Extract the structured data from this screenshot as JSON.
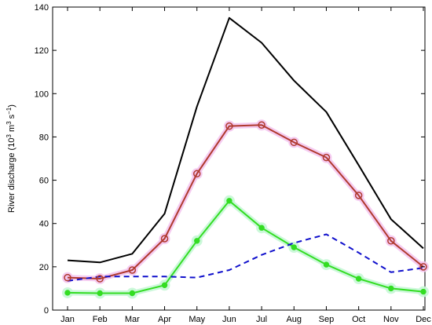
{
  "chart_data": {
    "type": "line",
    "title": "",
    "xlabel": "",
    "ylabel": "River discharge (10^3 m^3 s^-1)",
    "ylabel_parts": {
      "main": "River discharge (10",
      "exp1": "3",
      "mid": " m",
      "exp2": "3",
      "mid2": " s",
      "exp3": "−1",
      "end": ")"
    },
    "categories": [
      "Jan",
      "Feb",
      "Mar",
      "Apr",
      "May",
      "Jun",
      "Jul",
      "Aug",
      "Sep",
      "Oct",
      "Nov",
      "Dec"
    ],
    "ylim": [
      0,
      140
    ],
    "yticks": [
      0,
      20,
      40,
      60,
      80,
      100,
      120,
      140
    ],
    "grid": false,
    "legend": "none",
    "series": [
      {
        "values": [
          23,
          22,
          26,
          44.5,
          94,
          135,
          123.5,
          106,
          91.5,
          67,
          42,
          28.5
        ],
        "color": "#000000",
        "style": "solid",
        "marker": "none"
      },
      {
        "values": [
          15,
          14.5,
          18.5,
          33,
          63,
          85,
          85.5,
          77.5,
          70.5,
          53,
          32,
          20
        ],
        "color": "#b03a2e",
        "style": "solid",
        "marker": "open-circle",
        "halo": "#f4c6ef"
      },
      {
        "values": [
          8,
          7.8,
          7.8,
          11.5,
          32,
          50.5,
          38,
          29,
          21,
          14.5,
          10,
          8.5
        ],
        "color": "#33dd22",
        "style": "solid",
        "marker": "filled-circle",
        "halo": "#c6f7d6"
      },
      {
        "values": [
          13.5,
          15.5,
          15.5,
          15.5,
          15,
          18.5,
          25.5,
          31,
          35,
          26.5,
          17.5,
          19.5
        ],
        "color": "#1111cc",
        "style": "dashed",
        "marker": "none"
      }
    ]
  }
}
